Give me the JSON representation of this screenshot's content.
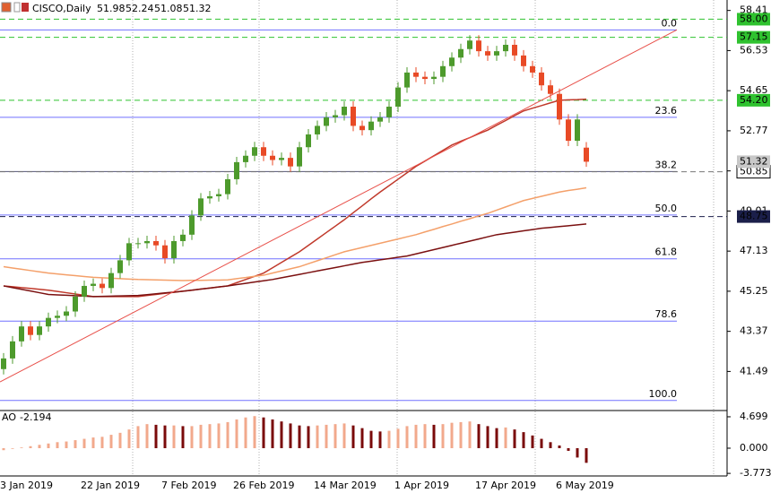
{
  "chart_data": [
    {
      "type": "candlestick",
      "title": "CISCO,Daily",
      "categories": [
        "3 Jan 2019",
        null,
        null,
        null,
        null,
        null,
        null,
        null,
        null,
        "22 Jan 2019",
        null,
        null,
        null,
        null,
        null,
        null,
        null,
        null,
        "7 Feb 2019",
        null,
        null,
        null,
        null,
        null,
        null,
        null,
        "26 Feb 2019",
        null,
        null,
        null,
        null,
        null,
        null,
        null,
        null,
        "14 Mar 2019",
        null,
        null,
        null,
        null,
        null,
        null,
        null,
        null,
        "1 Apr 2019",
        null,
        null,
        null,
        null,
        null,
        null,
        null,
        null,
        "17 Apr 2019",
        null,
        null,
        null,
        null,
        null,
        null,
        null,
        null,
        "6 May 2019",
        null,
        null,
        null
      ],
      "open": [
        41.6,
        42.1,
        42.9,
        43.6,
        43.2,
        43.6,
        44.0,
        44.1,
        44.3,
        45.0,
        45.5,
        45.6,
        45.4,
        46.1,
        46.7,
        47.5,
        47.5,
        47.6,
        47.4,
        46.8,
        47.6,
        47.9,
        48.8,
        49.6,
        49.7,
        49.8,
        50.5,
        51.3,
        51.6,
        52.0,
        51.6,
        51.4,
        51.5,
        51.1,
        52.0,
        52.6,
        53.0,
        53.4,
        53.5,
        53.9,
        53.0,
        52.8,
        53.2,
        53.4,
        53.9,
        54.8,
        55.5,
        55.3,
        55.2,
        55.3,
        55.8,
        56.2,
        56.6,
        57.0,
        56.5,
        56.3,
        56.5,
        56.8,
        56.3,
        55.8,
        55.5,
        54.9,
        54.5,
        53.3,
        52.3,
        51.98
      ],
      "high": [
        42.35,
        43.15,
        43.85,
        43.85,
        43.85,
        44.25,
        44.35,
        44.55,
        45.25,
        45.75,
        45.85,
        45.85,
        46.35,
        46.95,
        47.75,
        47.75,
        47.85,
        47.85,
        47.65,
        47.85,
        48.15,
        49.05,
        49.85,
        49.95,
        50.05,
        50.75,
        51.55,
        51.85,
        52.25,
        52.25,
        51.85,
        51.75,
        51.75,
        52.25,
        52.85,
        53.25,
        53.65,
        53.75,
        54.15,
        54.15,
        53.25,
        53.45,
        53.65,
        54.15,
        55.05,
        55.75,
        55.75,
        55.55,
        55.55,
        56.05,
        56.45,
        56.85,
        57.25,
        57.25,
        56.75,
        56.75,
        57.05,
        57.05,
        56.55,
        56.05,
        55.75,
        55.15,
        54.75,
        53.55,
        53.55,
        52.24
      ],
      "low": [
        41.35,
        41.85,
        42.65,
        42.95,
        42.95,
        43.35,
        43.75,
        43.85,
        44.05,
        44.75,
        45.25,
        45.15,
        45.15,
        45.85,
        46.45,
        47.25,
        47.25,
        47.15,
        46.55,
        46.55,
        47.35,
        47.65,
        48.55,
        49.35,
        49.45,
        49.55,
        50.25,
        51.05,
        51.35,
        51.35,
        51.15,
        51.15,
        50.85,
        50.85,
        51.75,
        52.35,
        52.75,
        53.15,
        53.25,
        52.75,
        52.55,
        52.55,
        52.95,
        53.15,
        53.65,
        54.55,
        55.05,
        54.95,
        54.95,
        55.05,
        55.55,
        55.95,
        56.35,
        56.25,
        56.05,
        56.05,
        56.25,
        56.05,
        55.55,
        55.25,
        54.65,
        54.25,
        53.05,
        52.05,
        52.05,
        51.08
      ],
      "close": [
        42.1,
        42.9,
        43.6,
        43.2,
        43.6,
        44.0,
        44.1,
        44.3,
        45.0,
        45.5,
        45.6,
        45.4,
        46.1,
        46.7,
        47.5,
        47.5,
        47.6,
        47.4,
        46.8,
        47.6,
        47.9,
        48.8,
        49.6,
        49.7,
        49.8,
        50.5,
        51.3,
        51.6,
        52.0,
        51.6,
        51.4,
        51.5,
        51.1,
        52.0,
        52.6,
        53.0,
        53.4,
        53.5,
        53.9,
        53.0,
        52.8,
        53.2,
        53.4,
        53.9,
        54.8,
        55.5,
        55.3,
        55.2,
        55.3,
        55.8,
        56.2,
        56.6,
        57.0,
        56.5,
        56.3,
        56.5,
        56.8,
        56.3,
        55.8,
        55.5,
        54.9,
        54.5,
        53.3,
        52.3,
        53.3,
        51.32
      ],
      "up_color": "#4d9a2c",
      "down_color": "#e84a26",
      "lines": [
        {
          "color": "#c0392b",
          "values": [
            45.5,
            45.46,
            45.42,
            45.38,
            45.34,
            45.3,
            45.24,
            45.18,
            45.12,
            45.06,
            45.0,
            45.0,
            45.0,
            45.0,
            45.0,
            45.0,
            45.05,
            45.1,
            45.15,
            45.2,
            45.25,
            45.3,
            45.35,
            45.4,
            45.45,
            45.5,
            45.65,
            45.8,
            45.95,
            46.1,
            46.35,
            46.6,
            46.85,
            47.1,
            47.4,
            47.7,
            48.0,
            48.3,
            48.6,
            48.93,
            49.25,
            49.58,
            49.9,
            50.2,
            50.5,
            50.8,
            51.1,
            51.35,
            51.6,
            51.85,
            52.1,
            52.28,
            52.45,
            52.63,
            52.8,
            53.03,
            53.25,
            53.48,
            53.7,
            53.83,
            53.95,
            54.08,
            54.2,
            54.22,
            54.23,
            54.25
          ]
        },
        {
          "color": "#f4a06a",
          "values": [
            46.4,
            46.34,
            46.28,
            46.22,
            46.16,
            46.1,
            46.06,
            46.02,
            45.98,
            45.94,
            45.9,
            45.88,
            45.86,
            45.84,
            45.82,
            45.8,
            45.79,
            45.78,
            45.77,
            45.76,
            45.75,
            45.76,
            45.76,
            45.77,
            45.77,
            45.78,
            45.84,
            45.89,
            45.95,
            46.0,
            46.1,
            46.2,
            46.3,
            46.4,
            46.54,
            46.68,
            46.82,
            46.96,
            47.1,
            47.2,
            47.3,
            47.4,
            47.5,
            47.6,
            47.7,
            47.8,
            47.9,
            48.03,
            48.15,
            48.28,
            48.4,
            48.53,
            48.65,
            48.78,
            48.9,
            49.05,
            49.2,
            49.35,
            49.5,
            49.6,
            49.7,
            49.8,
            49.9,
            49.97,
            50.03,
            50.1
          ]
        },
        {
          "color": "#7b1010",
          "values": [
            45.5,
            45.42,
            45.34,
            45.26,
            45.18,
            45.1,
            45.08,
            45.06,
            45.04,
            45.02,
            45.0,
            45.01,
            45.02,
            45.03,
            45.04,
            45.05,
            45.09,
            45.13,
            45.17,
            45.21,
            45.25,
            45.3,
            45.35,
            45.4,
            45.45,
            45.5,
            45.56,
            45.62,
            45.68,
            45.74,
            45.8,
            45.88,
            45.96,
            46.04,
            46.12,
            46.2,
            46.28,
            46.36,
            46.44,
            46.52,
            46.6,
            46.66,
            46.72,
            46.78,
            46.84,
            46.9,
            47.0,
            47.1,
            47.2,
            47.3,
            47.4,
            47.5,
            47.6,
            47.7,
            47.8,
            47.9,
            47.96,
            48.02,
            48.08,
            48.14,
            48.2,
            48.24,
            48.28,
            48.32,
            48.36,
            48.4
          ]
        }
      ],
      "trendline": {
        "color": "#e8504a",
        "x": [
          -0.4,
          75.1
        ],
        "values": [
          41.0,
          57.5
        ]
      },
      "fib_levels": [
        {
          "label": "0.0",
          "value": 57.5,
          "color": "#7070ff"
        },
        {
          "label": "23.6",
          "value": 53.4,
          "color": "#7070ff"
        },
        {
          "label": "38.2",
          "value": 50.86,
          "color": "#555577"
        },
        {
          "label": "50.0",
          "value": 48.82,
          "color": "#7070ff"
        },
        {
          "label": "61.8",
          "value": 46.77,
          "color": "#7070ff"
        },
        {
          "label": "78.6",
          "value": 43.85,
          "color": "#7070ff"
        },
        {
          "label": "100.0",
          "value": 40.13,
          "color": "#7070ff"
        }
      ],
      "price_levels": [
        {
          "value": 58,
          "label": "58.00",
          "color": "#2fc22f",
          "text_color": "#000000"
        },
        {
          "value": 57.15,
          "color": "#2fc22f",
          "text_color": "#000000"
        },
        {
          "value": 54.2,
          "label": "54.20",
          "color": "#2fc22f",
          "text_color": "#000000"
        },
        {
          "value": 50.85,
          "color": "#ffffff",
          "text_color": "#000000"
        },
        {
          "value": 48.75,
          "color": "#1b1f4a",
          "text_color": "#ffffff"
        }
      ],
      "bid_color": "#c8c8c8",
      "ylim": [
        39.7,
        58.9
      ],
      "yticks": [
        58.41,
        56.53,
        54.65,
        52.77,
        50.89,
        49.01,
        47.13,
        45.25,
        43.37,
        41.49
      ]
    },
    {
      "type": "bar",
      "title": "AO",
      "up_color": "#f2a98c",
      "down_color": "#7a0a0a",
      "values": [
        -0.3,
        -0.1,
        0.1,
        0.3,
        0.5,
        0.7,
        0.9,
        1.0,
        1.2,
        1.4,
        1.6,
        1.7,
        2.0,
        2.3,
        2.8,
        3.3,
        3.6,
        3.5,
        3.4,
        3.4,
        3.3,
        3.3,
        3.5,
        3.6,
        3.7,
        3.9,
        4.3,
        4.6,
        4.8,
        4.6,
        4.3,
        4.0,
        3.7,
        3.4,
        3.3,
        3.4,
        3.5,
        3.6,
        3.7,
        3.4,
        3.0,
        2.6,
        2.5,
        2.6,
        2.9,
        3.3,
        3.5,
        3.6,
        3.5,
        3.6,
        3.8,
        3.9,
        4.0,
        3.6,
        3.3,
        3.0,
        3.1,
        2.8,
        2.4,
        1.9,
        1.4,
        0.9,
        0.4,
        -0.4,
        -1.4,
        -2.194
      ],
      "ylim": [
        -4.16,
        5.5
      ],
      "yticks": [
        4.699,
        {
          "value": 0,
          "label": "0.000"
        },
        -3.773
      ]
    }
  ]
}
